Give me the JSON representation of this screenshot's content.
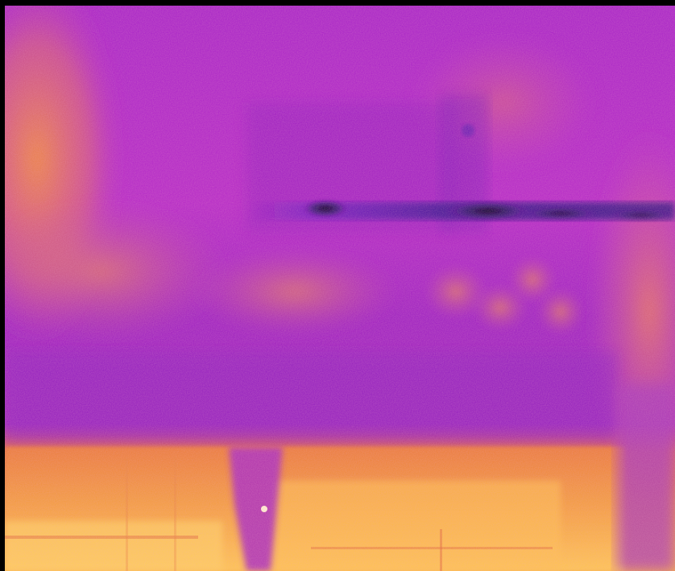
{
  "image": {
    "kind": "thermal-camera-view",
    "palette": "ironbow",
    "colors": {
      "background": "#000000",
      "cold": "#0a0530",
      "cool": "#7a10b0",
      "mid": "#b024c8",
      "warm": "#e05a78",
      "hot": "#f29a2a",
      "hottest": "#ffd25a",
      "highlight": "#fff2d0"
    }
  }
}
